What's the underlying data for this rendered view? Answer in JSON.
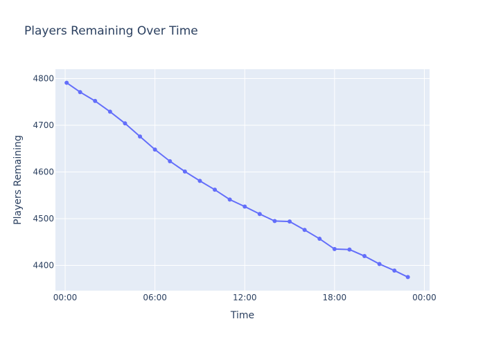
{
  "chart_data": {
    "type": "line",
    "title": "Players Remaining Over Time",
    "xlabel": "Time",
    "ylabel": "Players Remaining",
    "x_unit": "hours",
    "x": [
      0.1,
      1,
      2,
      3,
      4,
      5,
      6,
      7,
      8,
      9,
      10,
      11,
      12,
      13,
      14,
      15,
      16,
      17,
      18,
      19,
      20,
      21,
      22,
      22.9
    ],
    "x_ticks": [
      {
        "value": 0,
        "label": "00:00"
      },
      {
        "value": 6,
        "label": "06:00"
      },
      {
        "value": 12,
        "label": "12:00"
      },
      {
        "value": 18,
        "label": "18:00"
      },
      {
        "value": 24,
        "label": "00:00"
      }
    ],
    "xlim": [
      -0.65,
      24.35
    ],
    "series": [
      {
        "values": [
          4791,
          4771,
          4752,
          4729,
          4704,
          4676,
          4648,
          4623,
          4601,
          4581,
          4562,
          4541,
          4526,
          4510,
          4495,
          4494,
          4476,
          4457,
          4435,
          4434,
          4420,
          4403,
          4389,
          4375
        ],
        "color": "#636efa"
      }
    ],
    "y_ticks": [
      4400,
      4500,
      4600,
      4700,
      4800
    ],
    "ylim": [
      4346,
      4820
    ],
    "grid": true,
    "plot_background": "#e5ecf6"
  }
}
